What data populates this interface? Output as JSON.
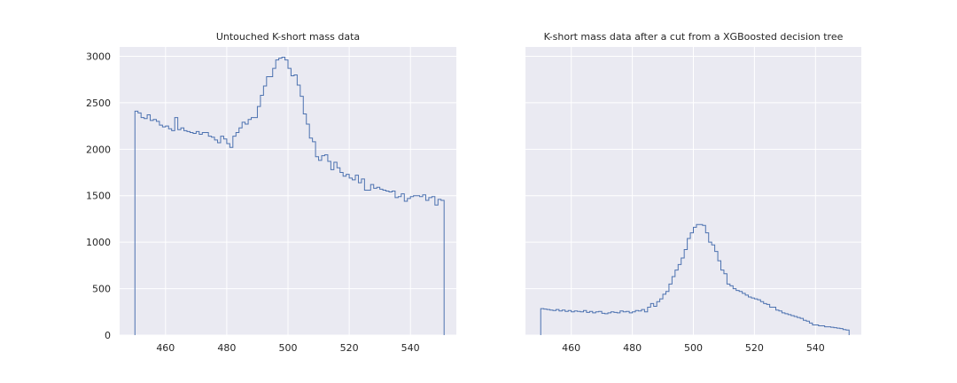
{
  "chart_data": [
    {
      "type": "histogram",
      "title": "Untouched K-short mass data",
      "xlabel": "",
      "ylabel": "",
      "xlim": [
        445,
        555
      ],
      "ylim": [
        0,
        3100
      ],
      "xticks": [
        460,
        480,
        500,
        520,
        540
      ],
      "yticks": [
        0,
        500,
        1000,
        1500,
        2000,
        2500,
        3000
      ],
      "grid": true,
      "color": "#4c72b0",
      "bin_range": [
        450,
        550
      ],
      "bin_width": 1,
      "counts": [
        2410,
        2390,
        2340,
        2330,
        2370,
        2310,
        2320,
        2300,
        2260,
        2240,
        2250,
        2220,
        2200,
        2340,
        2210,
        2230,
        2200,
        2190,
        2180,
        2170,
        2190,
        2160,
        2180,
        2180,
        2140,
        2130,
        2100,
        2070,
        2140,
        2110,
        2060,
        2020,
        2140,
        2180,
        2230,
        2290,
        2270,
        2320,
        2340,
        2340,
        2460,
        2580,
        2680,
        2780,
        2780,
        2870,
        2960,
        2980,
        2990,
        2960,
        2870,
        2790,
        2800,
        2690,
        2570,
        2380,
        2270,
        2120,
        2080,
        1920,
        1880,
        1930,
        1940,
        1870,
        1780,
        1860,
        1800,
        1750,
        1710,
        1730,
        1690,
        1670,
        1720,
        1640,
        1680,
        1560,
        1560,
        1620,
        1580,
        1590,
        1570,
        1560,
        1550,
        1540,
        1550,
        1480,
        1490,
        1520,
        1440,
        1470,
        1490,
        1500,
        1500,
        1490,
        1510,
        1450,
        1480,
        1490,
        1400,
        1460,
        1450
      ]
    },
    {
      "type": "histogram",
      "title": "K-short mass data after a cut from a XGBoosted decision tree",
      "xlabel": "",
      "ylabel": "",
      "xlim": [
        445,
        555
      ],
      "ylim": [
        0,
        3100
      ],
      "xticks": [
        460,
        480,
        500,
        520,
        540
      ],
      "yticks": [],
      "grid": true,
      "color": "#4c72b0",
      "bin_range": [
        450,
        550
      ],
      "bin_width": 1,
      "counts": [
        285,
        280,
        275,
        270,
        265,
        275,
        260,
        270,
        255,
        265,
        250,
        260,
        255,
        250,
        265,
        245,
        255,
        240,
        250,
        255,
        235,
        230,
        240,
        250,
        245,
        240,
        260,
        250,
        255,
        240,
        250,
        265,
        260,
        275,
        250,
        300,
        340,
        310,
        360,
        390,
        440,
        470,
        550,
        630,
        700,
        760,
        830,
        920,
        1040,
        1100,
        1160,
        1190,
        1190,
        1180,
        1100,
        1000,
        970,
        900,
        800,
        700,
        660,
        550,
        530,
        500,
        480,
        470,
        450,
        430,
        410,
        400,
        390,
        380,
        360,
        340,
        330,
        300,
        300,
        270,
        260,
        240,
        230,
        220,
        210,
        200,
        190,
        180,
        160,
        150,
        130,
        110,
        110,
        100,
        100,
        90,
        90,
        85,
        80,
        75,
        70,
        60,
        55
      ]
    }
  ]
}
